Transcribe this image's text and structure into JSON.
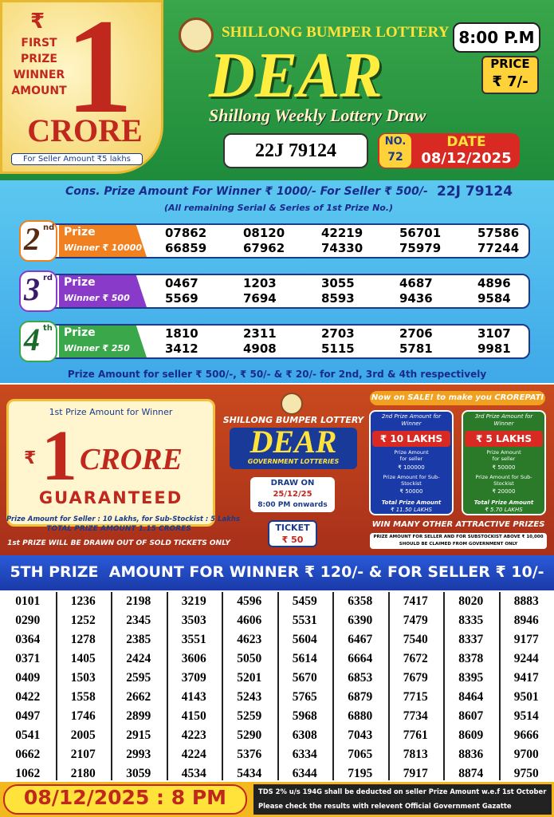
{
  "header": {
    "currency": "₹",
    "first_prize_label": "FIRST PRIZE WINNER AMOUNT",
    "big_number": "1",
    "crore": "CRORE",
    "seller_amount": "For Seller Amount ₹5 lakhs",
    "lottery_name": "SHILLONG BUMPER LOTTERY",
    "draw_time": "8:00 P.M",
    "brand": "DEAR",
    "subtitle": "Shillong Weekly Lottery Draw",
    "first_prize_ticket": "22J 79124",
    "price_label": "PRICE",
    "price": "₹ 7/-",
    "draw_no_label": "NO.",
    "draw_no": "72",
    "date_label": "DATE",
    "date": "08/12/2025"
  },
  "consolation": {
    "line": "Cons. Prize Amount For Winner ₹ 1000/- For Seller ₹ 500/-",
    "ticket": "22J 79124",
    "note": "(All remaining Serial & Series of 1st Prize No.)"
  },
  "prizes": [
    {
      "rank": "2",
      "suffix": "nd",
      "label": "Prize",
      "winner": "Winner ₹ 10000",
      "numbers": [
        "07862",
        "08120",
        "42219",
        "56701",
        "57586",
        "66859",
        "67962",
        "74330",
        "75979",
        "77244"
      ]
    },
    {
      "rank": "3",
      "suffix": "rd",
      "label": "Prize",
      "winner": "Winner ₹ 500",
      "numbers": [
        "0467",
        "1203",
        "3055",
        "4687",
        "4896",
        "5569",
        "7694",
        "8593",
        "9436",
        "9584"
      ]
    },
    {
      "rank": "4",
      "suffix": "th",
      "label": "Prize",
      "winner": "Winner ₹ 250",
      "numbers": [
        "1810",
        "2311",
        "2703",
        "2706",
        "3107",
        "3412",
        "4908",
        "5115",
        "5781",
        "9981"
      ]
    }
  ],
  "prize_note": "Prize Amount for seller ₹ 500/-, ₹ 50/- & ₹ 20/- for 2nd, 3rd & 4th respectively",
  "promo": {
    "left": {
      "heading": "1st Prize Amount for Winner",
      "currency": "₹",
      "big_number": "1",
      "crore": "CRORE",
      "guaranteed": "GUARANTEED",
      "seller_line": "Prize Amount for Seller : 10 Lakhs, for Sub-Stockist : 5 Lakhs",
      "total": "TOTAL PRIZE AMOUNT 1.15 CRORES",
      "note": "1st PRIZE WILL BE DRAWN OUT OF SOLD TICKETS ONLY"
    },
    "middle": {
      "lottery_name": "SHILLONG BUMPER LOTTERY",
      "brand": "DEAR",
      "tagline": "GOVERNMENT LOTTERIES",
      "draw_on": "DRAW ON",
      "draw_date": "25/12/25",
      "draw_time": "8:00 PM onwards",
      "ticket_label": "TICKET",
      "ticket_price": "₹ 50"
    },
    "right": {
      "banner": "Now on SALE! to make you CROREPATI",
      "cards": [
        {
          "heading": "2nd Prize Amount for Winner",
          "amount": "₹ 10 LAKHS",
          "seller_label": "Prize Amount for seller",
          "seller": "₹ 100000",
          "stockist_label": "Prize Amount for Sub-Stockist",
          "stockist": "₹ 50000",
          "total_label": "Total Prize Amount",
          "total": "₹ 11.50 LAKHS"
        },
        {
          "heading": "3rd Prize Amount for Winner",
          "amount": "₹ 5 LAKHS",
          "seller_label": "Prize Amount for seller",
          "seller": "₹ 50000",
          "stockist_label": "Prize Amount for Sub-Stockist",
          "stockist": "₹ 20000",
          "total_label": "Total Prize Amount",
          "total": "₹ 5.70 LAKHS"
        }
      ],
      "win_more": "WIN MANY OTHER ATTRACTIVE PRIZES",
      "claim_note": "PRIZE AMOUNT FOR SELLER AND FOR SUBSTOCKIST ABOVE ₹ 10,000 SHOULD BE CLAIMED FROM GOVERNMENT ONLY"
    }
  },
  "fifth": {
    "title": "5TH PRIZE  AMOUNT FOR WINNER ₹ 120/- & FOR SELLER ₹ 10/-",
    "columns": [
      [
        "0101",
        "0290",
        "0364",
        "0371",
        "0409",
        "0422",
        "0497",
        "0541",
        "0662",
        "1062"
      ],
      [
        "1236",
        "1252",
        "1278",
        "1405",
        "1503",
        "1558",
        "1746",
        "2005",
        "2107",
        "2180"
      ],
      [
        "2198",
        "2345",
        "2385",
        "2424",
        "2595",
        "2662",
        "2899",
        "2915",
        "2993",
        "3059"
      ],
      [
        "3219",
        "3503",
        "3551",
        "3606",
        "3709",
        "4143",
        "4150",
        "4223",
        "4224",
        "4534"
      ],
      [
        "4596",
        "4606",
        "4623",
        "5050",
        "5201",
        "5243",
        "5259",
        "5290",
        "5376",
        "5434"
      ],
      [
        "5459",
        "5531",
        "5604",
        "5614",
        "5670",
        "5765",
        "5968",
        "6308",
        "6334",
        "6344"
      ],
      [
        "6358",
        "6390",
        "6467",
        "6664",
        "6853",
        "6879",
        "6880",
        "7043",
        "7065",
        "7195"
      ],
      [
        "7417",
        "7479",
        "7540",
        "7672",
        "7679",
        "7715",
        "7734",
        "7761",
        "7813",
        "7917"
      ],
      [
        "8020",
        "8335",
        "8337",
        "8378",
        "8395",
        "8464",
        "8607",
        "8609",
        "8836",
        "8874"
      ],
      [
        "8883",
        "8946",
        "9177",
        "9244",
        "9417",
        "9501",
        "9514",
        "9666",
        "9700",
        "9750"
      ]
    ]
  },
  "footer": {
    "date": "08/12/2025 : 8 PM",
    "notes": [
      "TDS 2% u/s 194G shall be deducted on seller Prize Amount w.e.f  1st October",
      "Please check the results with relevent Official Government Gazatte"
    ]
  }
}
